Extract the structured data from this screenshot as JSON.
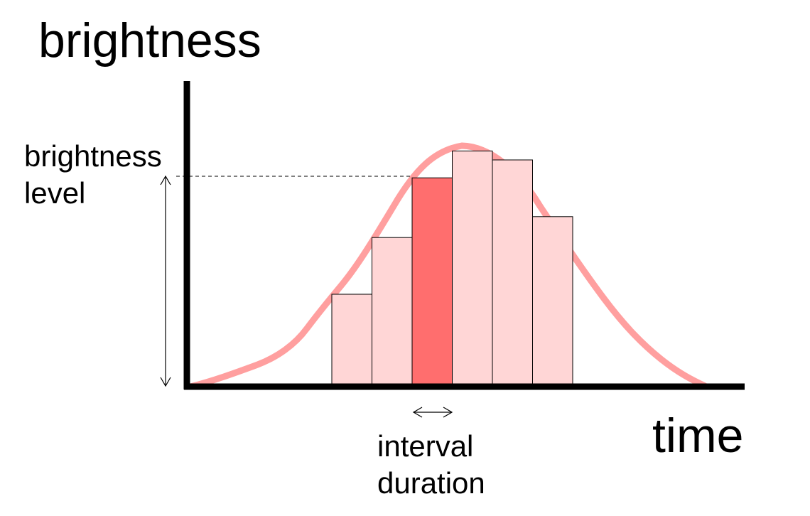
{
  "labels": {
    "y_axis": "brightness",
    "x_axis": "time",
    "level_line1": "brightness",
    "level_line2": "level",
    "interval_line1": "interval",
    "interval_line2": "duration"
  },
  "colors": {
    "curve": "#ff9f9f",
    "bar_light": "#ffd6d6",
    "bar_highlight": "#ff6e6e",
    "axis": "#000000"
  },
  "bars": [
    {
      "level": 0.3,
      "highlighted": false
    },
    {
      "level": 0.49,
      "highlighted": false
    },
    {
      "level": 0.69,
      "highlighted": true
    },
    {
      "level": 0.78,
      "highlighted": false
    },
    {
      "level": 0.75,
      "highlighted": false
    },
    {
      "level": 0.56,
      "highlighted": false
    }
  ]
}
